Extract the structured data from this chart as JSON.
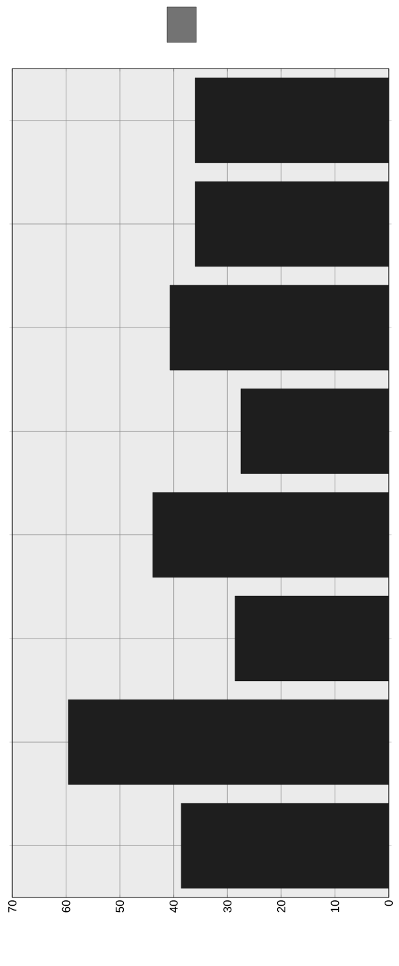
{
  "chart_data": {
    "type": "bar",
    "orientation": "horizontal",
    "categories": [
      null,
      null,
      null,
      null,
      null,
      null,
      null,
      null
    ],
    "series": [
      {
        "color": "#1e1e1e",
        "values": [
          36,
          36,
          40.7,
          27.5,
          43.9,
          28.6,
          59.6,
          38.6
        ]
      }
    ],
    "xlim": [
      70,
      0
    ],
    "xticks": [
      70,
      60,
      50,
      40,
      30,
      20,
      10,
      0
    ],
    "grid": true
  }
}
